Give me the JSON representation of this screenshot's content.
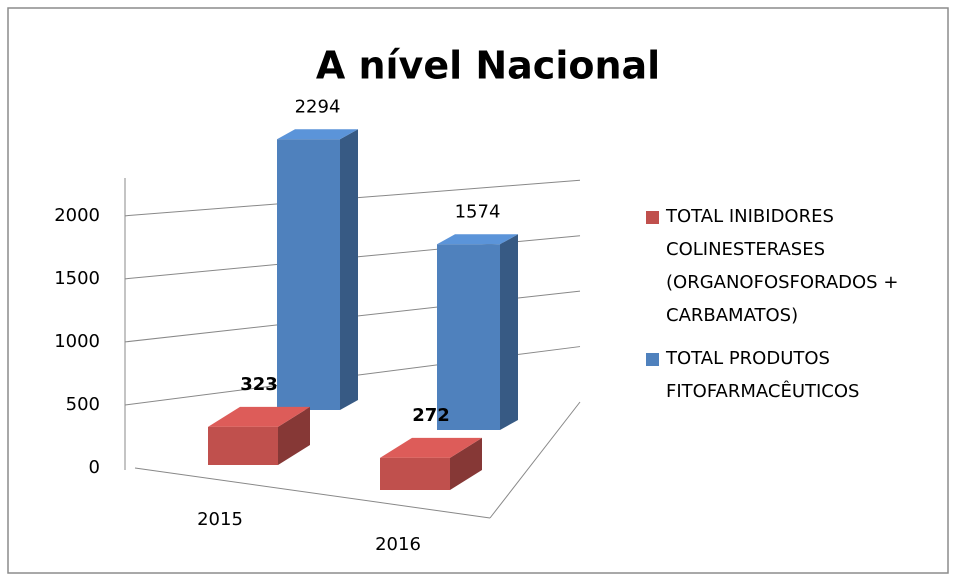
{
  "chart_data": {
    "type": "bar3d",
    "title": "A nível Nacional",
    "categories": [
      "2015",
      "2016"
    ],
    "series": [
      {
        "name": "TOTAL INIBIDORES COLINESTERASES (ORGANOFOSFORADOS + CARBAMATOS)",
        "color": "#c0504d",
        "values": [
          323,
          272
        ]
      },
      {
        "name": "TOTAL PRODUTOS FITOFARMACÊUTICOS",
        "color": "#4f81bd",
        "values": [
          2294,
          1574
        ]
      }
    ],
    "ylim": [
      0,
      2300
    ],
    "yticks": [
      0,
      500,
      1000,
      1500,
      2000
    ],
    "grid": true,
    "legend": "right"
  }
}
